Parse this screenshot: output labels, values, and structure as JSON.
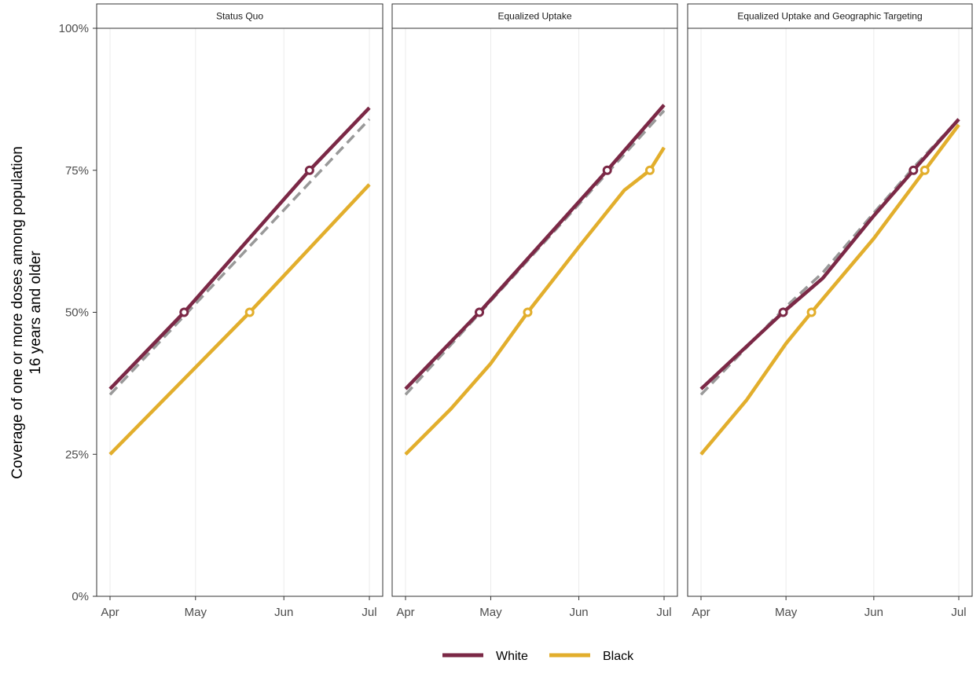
{
  "chart_data": {
    "type": "line",
    "ylabel_lines": [
      "Coverage of one or more doses among population",
      "16 years and older"
    ],
    "xlabel": "",
    "ylim": [
      0,
      100
    ],
    "y_ticks": [
      0,
      25,
      50,
      75,
      100
    ],
    "y_tick_labels": [
      "0%",
      "25%",
      "50%",
      "75%",
      "100%"
    ],
    "x_range": [
      "2021-04-01",
      "2021-07-01"
    ],
    "x_ticks": [
      "2021-04-01",
      "2021-05-01",
      "2021-06-01",
      "2021-07-01"
    ],
    "x_tick_labels": [
      "Apr",
      "May",
      "Jun",
      "Jul"
    ],
    "grid": true,
    "legend_position": "bottom",
    "legend": [
      {
        "name": "White",
        "color": "#7b2846"
      },
      {
        "name": "Black",
        "color": "#e2ae2c"
      }
    ],
    "reference_line": {
      "style": "dashed",
      "color": "#999999"
    },
    "panels": [
      {
        "title": "Status Quo",
        "series": [
          {
            "name": "Overall",
            "style": "dashed",
            "color": "#999999",
            "points": [
              [
                "2021-04-01",
                35.5
              ],
              [
                "2021-07-01",
                84.0
              ]
            ]
          },
          {
            "name": "Black",
            "color": "#e2ae2c",
            "points": [
              [
                "2021-04-01",
                25.0
              ],
              [
                "2021-05-20",
                50.0
              ],
              [
                "2021-07-01",
                72.5
              ]
            ],
            "marker": [
              "2021-05-20",
              50.0
            ]
          },
          {
            "name": "White",
            "color": "#7b2846",
            "points": [
              [
                "2021-04-01",
                36.5
              ],
              [
                "2021-04-27",
                50.0
              ],
              [
                "2021-06-10",
                75.0
              ],
              [
                "2021-07-01",
                86.0
              ]
            ],
            "markers": [
              [
                "2021-04-27",
                50.0
              ],
              [
                "2021-06-10",
                75.0
              ]
            ]
          }
        ]
      },
      {
        "title": "Equalized Uptake",
        "series": [
          {
            "name": "Overall",
            "style": "dashed",
            "color": "#999999",
            "points": [
              [
                "2021-04-01",
                35.5
              ],
              [
                "2021-07-01",
                85.5
              ]
            ]
          },
          {
            "name": "Black",
            "color": "#e2ae2c",
            "points": [
              [
                "2021-04-01",
                25.0
              ],
              [
                "2021-04-17",
                33.0
              ],
              [
                "2021-05-01",
                41.0
              ],
              [
                "2021-05-14",
                50.0
              ],
              [
                "2021-06-01",
                61.5
              ],
              [
                "2021-06-17",
                71.5
              ],
              [
                "2021-06-26",
                75.0
              ],
              [
                "2021-07-01",
                79.0
              ]
            ],
            "marker": [
              "2021-06-26",
              75.0
            ]
          },
          {
            "name": "White",
            "color": "#7b2846",
            "points": [
              [
                "2021-04-01",
                36.5
              ],
              [
                "2021-04-27",
                50.0
              ],
              [
                "2021-06-11",
                75.0
              ],
              [
                "2021-07-01",
                86.5
              ]
            ],
            "markers": [
              [
                "2021-04-27",
                50.0
              ],
              [
                "2021-06-11",
                75.0
              ]
            ]
          }
        ],
        "extra_markers": [
          {
            "series": "Black",
            "point": [
              "2021-05-14",
              50.0
            ]
          }
        ]
      },
      {
        "title": "Equalized Uptake and Geographic Targeting",
        "series": [
          {
            "name": "Overall",
            "style": "dashed",
            "color": "#999999",
            "points": [
              [
                "2021-04-01",
                35.5
              ],
              [
                "2021-05-01",
                51.0
              ],
              [
                "2021-05-14",
                57.0
              ],
              [
                "2021-06-01",
                67.5
              ],
              [
                "2021-06-16",
                76.0
              ],
              [
                "2021-07-01",
                84.0
              ]
            ]
          },
          {
            "name": "Black",
            "color": "#e2ae2c",
            "points": [
              [
                "2021-04-01",
                25.0
              ],
              [
                "2021-04-17",
                34.5
              ],
              [
                "2021-05-01",
                44.5
              ],
              [
                "2021-05-10",
                50.0
              ],
              [
                "2021-06-01",
                63.0
              ],
              [
                "2021-06-19",
                75.0
              ],
              [
                "2021-07-01",
                83.0
              ]
            ],
            "markers": [
              [
                "2021-05-10",
                50.0
              ],
              [
                "2021-06-19",
                75.0
              ]
            ]
          },
          {
            "name": "White",
            "color": "#7b2846",
            "points": [
              [
                "2021-04-01",
                36.5
              ],
              [
                "2021-04-30",
                50.0
              ],
              [
                "2021-05-14",
                56.0
              ],
              [
                "2021-06-01",
                67.0
              ],
              [
                "2021-06-15",
                75.0
              ],
              [
                "2021-07-01",
                84.0
              ]
            ],
            "markers": [
              [
                "2021-04-30",
                50.0
              ],
              [
                "2021-06-15",
                75.0
              ]
            ]
          }
        ]
      }
    ]
  }
}
